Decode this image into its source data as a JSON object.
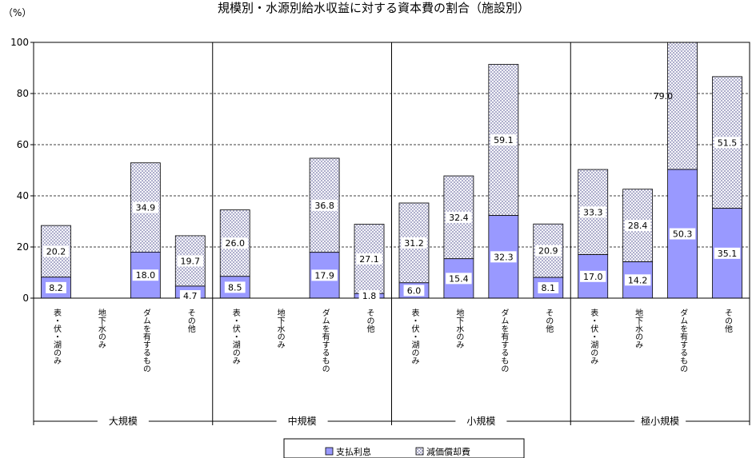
{
  "chart_data": {
    "type": "bar",
    "stacked": true,
    "title": "規模別・水源別給水収益に対する資本費の割合（施設別）",
    "unit": "（%）",
    "ylim": [
      0,
      100
    ],
    "yticks": [
      "0",
      "20",
      "40",
      "60",
      "80",
      "100"
    ],
    "grid": "dashed-horizontal",
    "legend_position": "bottom",
    "groups": [
      {
        "name": "大規模",
        "categories": [
          {
            "label": "表・伏・湖のみ",
            "values": [
              8.2,
              20.2
            ]
          },
          {
            "label": "地下水のみ",
            "values": [
              null,
              null
            ]
          },
          {
            "label": "ダムを有するもの",
            "values": [
              18.0,
              34.9
            ]
          },
          {
            "label": "その他",
            "values": [
              4.7,
              19.7
            ]
          }
        ]
      },
      {
        "name": "中規模",
        "categories": [
          {
            "label": "表・伏・湖のみ",
            "values": [
              8.5,
              26.0
            ]
          },
          {
            "label": "地下水のみ",
            "values": [
              null,
              null
            ]
          },
          {
            "label": "ダムを有するもの",
            "values": [
              17.9,
              36.8
            ]
          },
          {
            "label": "その他",
            "values": [
              1.8,
              27.1
            ]
          }
        ]
      },
      {
        "name": "小規模",
        "categories": [
          {
            "label": "表・伏・湖のみ",
            "values": [
              6.0,
              31.2
            ]
          },
          {
            "label": "地下水のみ",
            "values": [
              15.4,
              32.4
            ]
          },
          {
            "label": "ダムを有するもの",
            "values": [
              32.3,
              59.1
            ]
          },
          {
            "label": "その他",
            "values": [
              8.1,
              20.9
            ]
          }
        ]
      },
      {
        "name": "極小規模",
        "categories": [
          {
            "label": "表・伏・湖のみ",
            "values": [
              17.0,
              33.3
            ]
          },
          {
            "label": "地下水のみ",
            "values": [
              14.2,
              28.4
            ]
          },
          {
            "label": "ダムを有するもの",
            "values": [
              50.3,
              79.0
            ]
          },
          {
            "label": "その他",
            "values": [
              35.1,
              51.5
            ]
          }
        ]
      }
    ],
    "series": [
      {
        "name": "支払利息",
        "color": "#9999ff",
        "pattern": "solid"
      },
      {
        "name": "減価償却費",
        "color": "#ccccff",
        "pattern": "crosshatch"
      }
    ]
  }
}
